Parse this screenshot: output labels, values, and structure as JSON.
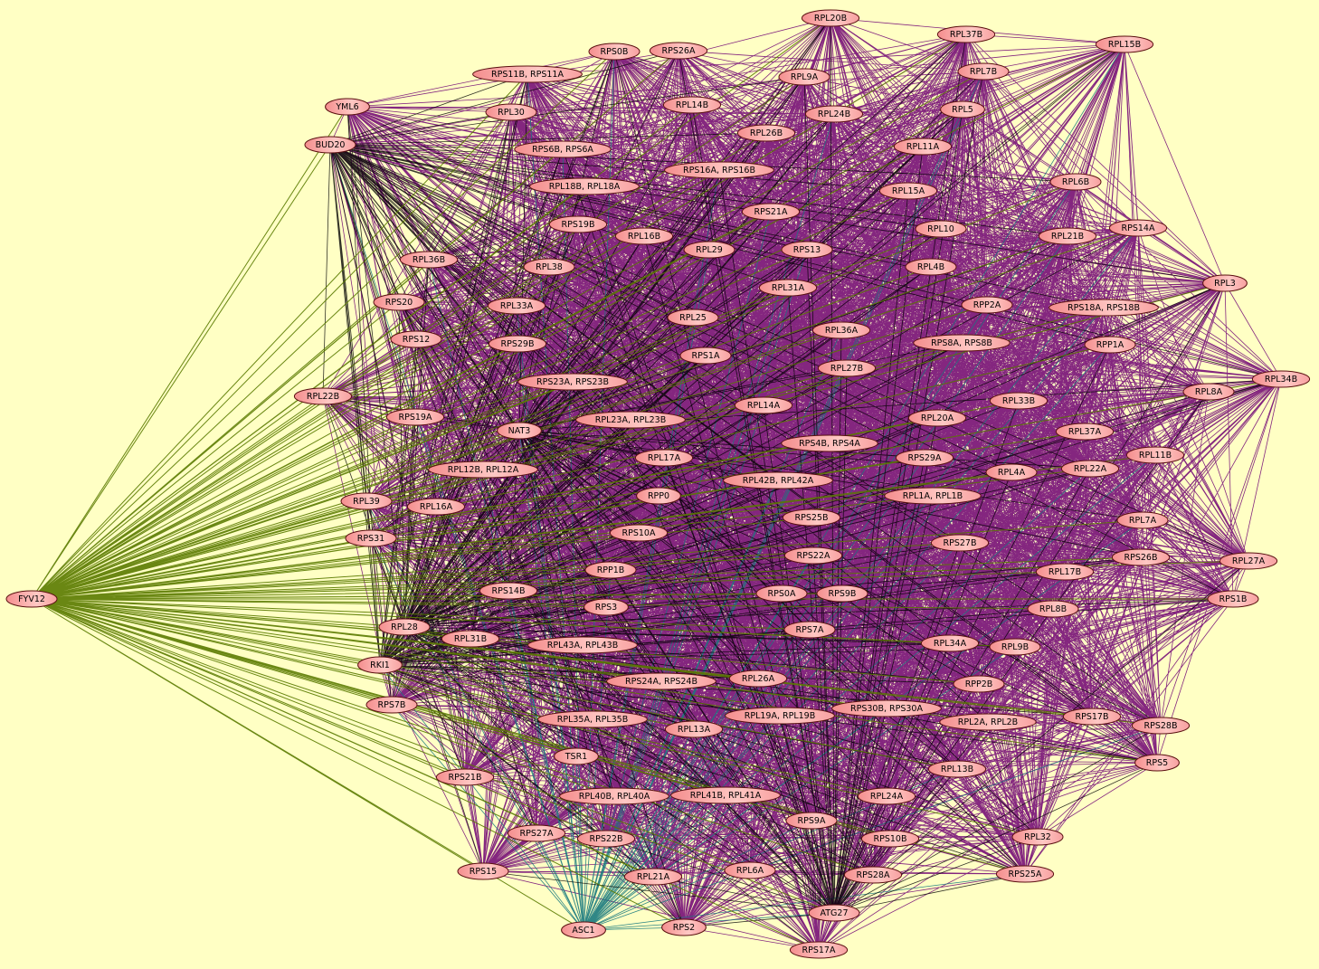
{
  "colors": {
    "background": "#ffffc4",
    "edge_main": "#6e0073",
    "edge_hub": "#000000",
    "edge_fyv12": "#5a7a00",
    "edge_asc1": "#1a7a80",
    "node_fill": "#f79a9a",
    "node_fill_light": "#ffd4d0",
    "node_border": "#5a1010"
  },
  "network": {
    "nodes": [
      "RPL20B",
      "RPL37B",
      "RPL15B",
      "RPS0B",
      "RPS26A",
      "RPS11B, RPS11A",
      "RPL9A",
      "RPL7B",
      "YML6",
      "RPL30",
      "RPL14B",
      "RPL24B",
      "RPL5",
      "BUD20",
      "RPL26B",
      "RPS6B, RPS6A",
      "RPL11A",
      "RPS16A, RPS16B",
      "RPL6B",
      "RPL18B, RPL18A",
      "RPL15A",
      "RPS21A",
      "RPS19B",
      "RPL16B",
      "RPL10",
      "RPL21B",
      "RPS14A",
      "RPL29",
      "RPS13",
      "RPL36B",
      "RPL38",
      "RPL4B",
      "RPL3",
      "RPL31A",
      "RPS20",
      "RPL33A",
      "RPP2A",
      "RPS18A, RPS18B",
      "RPL25",
      "RPL36A",
      "RPS12",
      "RPS29B",
      "RPS8A, RPS8B",
      "RPP1A",
      "RPS1A",
      "RPL27B",
      "RPL34B",
      "RPS23A, RPS23B",
      "RPL22B",
      "RPL8A",
      "RPL14A",
      "RPL33B",
      "RPS19A",
      "NAT3",
      "RPL23A, RPL23B",
      "RPL20A",
      "RPL37A",
      "RPS4B, RPS4A",
      "RPL17A",
      "RPS29A",
      "RPL11B",
      "RPL12B, RPL12A",
      "RPL4A",
      "RPL22A",
      "RPL42B, RPL42A",
      "RPP0",
      "RPL1A, RPL1B",
      "RPL39",
      "RPL16A",
      "RPS25B",
      "RPL7A",
      "RPS31",
      "RPS10A",
      "RPS27B",
      "RPS22A",
      "RPS26B",
      "RPL27A",
      "RPP1B",
      "RPL17B",
      "FYV12",
      "RPS14B",
      "RPS0A",
      "RPS9B",
      "RPS1B",
      "RPS3",
      "RPL8B",
      "RPL28",
      "RPS7A",
      "RPL31B",
      "RPL43A, RPL43B",
      "RPL34A",
      "RPL9B",
      "RKI1",
      "RPL26A",
      "RPS24A, RPS24B",
      "RPP2B",
      "RPS7B",
      "RPS30B, RPS30A",
      "RPL19A, RPL19B",
      "RPL35A, RPL35B",
      "RPL2A, RPL2B",
      "RPS17B",
      "RPS28B",
      "RPL13A",
      "TSR1",
      "RPS5",
      "RPL13B",
      "RPS21B",
      "RPL40B, RPL40A",
      "RPL41B, RPL41A",
      "RPL24A",
      "RPS9A",
      "RPS27A",
      "RPS22B",
      "RPS10B",
      "RPL32",
      "RPS15",
      "RPL21A",
      "RPL6A",
      "RPS28A",
      "RPS25A",
      "ASC1",
      "RPS2",
      "ATG27",
      "RPS17A"
    ],
    "hubs": [
      "BUD20",
      "NAT3",
      "RKI1",
      "RPL28",
      "ATG27"
    ],
    "special": {
      "FYV12": "edge_fyv12",
      "ASC1": "edge_asc1"
    }
  }
}
